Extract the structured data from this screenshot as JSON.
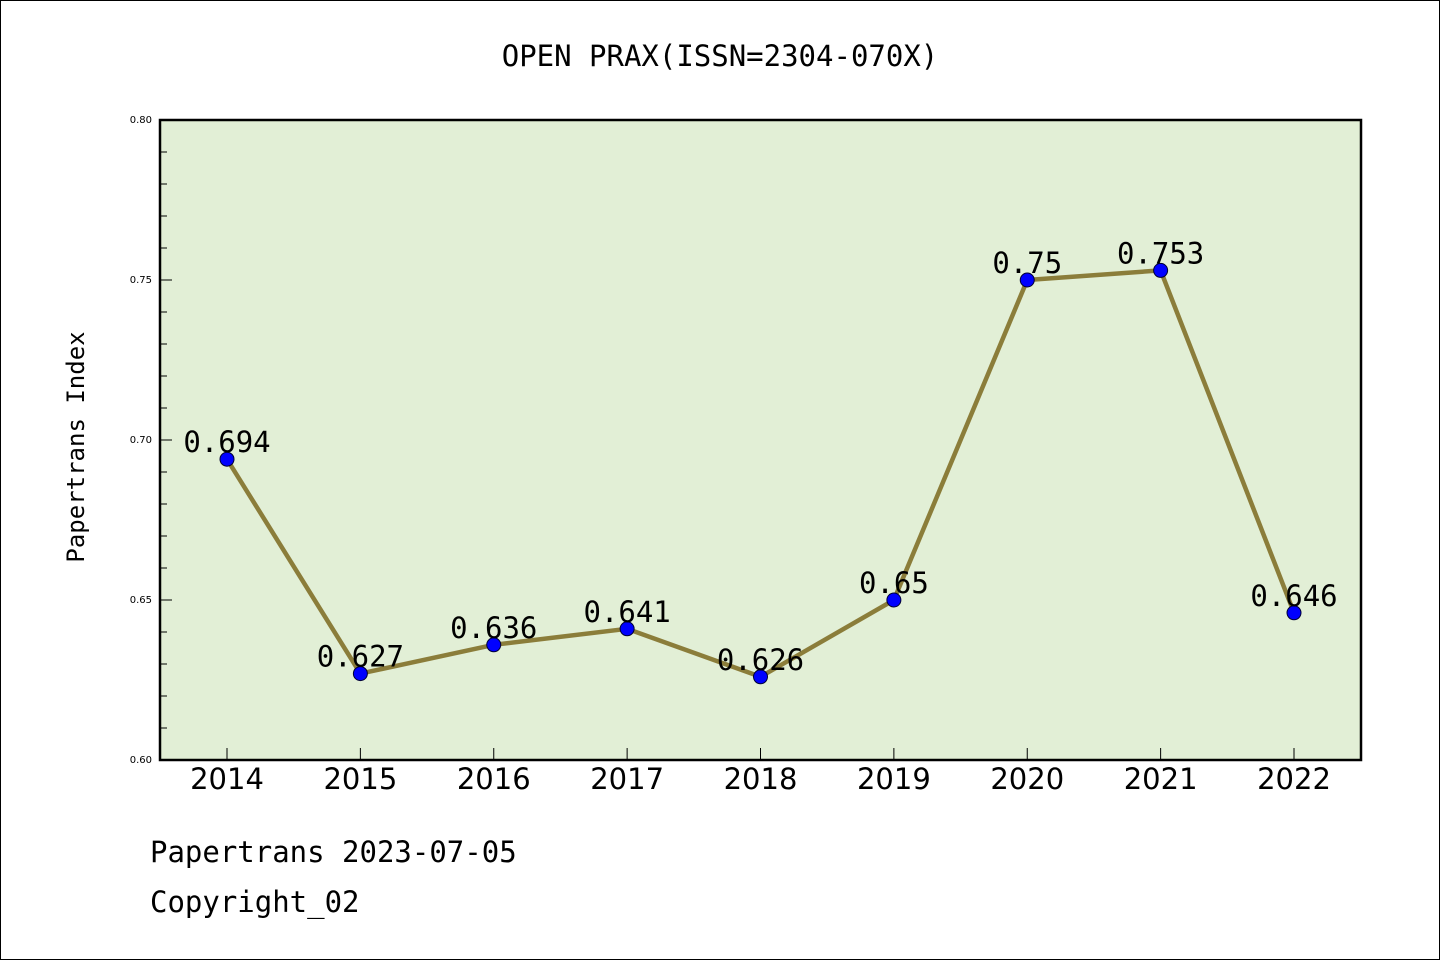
{
  "chart_data": {
    "type": "line",
    "title": "OPEN PRAX(ISSN=2304-070X)",
    "xlabel": "",
    "ylabel": "Papertrans Index",
    "categories": [
      "2014",
      "2015",
      "2016",
      "2017",
      "2018",
      "2019",
      "2020",
      "2021",
      "2022"
    ],
    "series": [
      {
        "values": [
          0.694,
          0.627,
          0.636,
          0.641,
          0.626,
          0.65,
          0.75,
          0.753,
          0.646
        ],
        "labels": [
          "0.694",
          "0.627",
          "0.636",
          "0.641",
          "0.626",
          "0.65",
          "0.75",
          "0.753",
          "0.646"
        ]
      }
    ],
    "ylim": [
      0.6,
      0.8
    ],
    "yticks": [
      "0.60",
      "0.65",
      "0.70",
      "0.75",
      "0.80"
    ],
    "grid": false,
    "legend": "none",
    "colors": {
      "plot_background": "#e2efd6",
      "line": "#8b7d3a",
      "marker": "#0000ff"
    }
  },
  "footer": {
    "line1": "Papertrans 2023-07-05",
    "line2": "Copyright_02"
  }
}
